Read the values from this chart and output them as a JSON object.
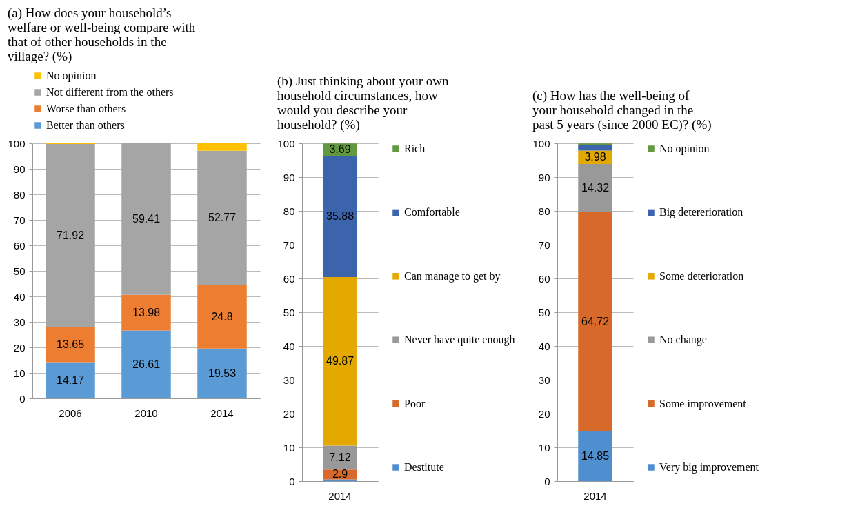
{
  "chart_data": [
    {
      "type": "bar",
      "stacked": true,
      "title": "(a) How does your household’s welfare or well-being compare with that of other households in the village? (%)",
      "categories": [
        "2006",
        "2010",
        "2014"
      ],
      "ylim": [
        0,
        100
      ],
      "yticks": [
        0,
        10,
        20,
        30,
        40,
        50,
        60,
        70,
        80,
        90,
        100
      ],
      "grid": "y",
      "legend": "top left",
      "series": [
        {
          "name": "Better than others",
          "color": "#5b9bd5",
          "values": [
            14.17,
            26.61,
            19.53
          ],
          "value_labels": [
            "14.17",
            "26.61",
            "19.53"
          ]
        },
        {
          "name": "Worse than others",
          "color": "#ed7d31",
          "values": [
            13.65,
            13.98,
            24.8
          ],
          "value_labels": [
            "13.65",
            "13.98",
            "24.8"
          ]
        },
        {
          "name": "Not different from the others",
          "color": "#a5a5a5",
          "values": [
            71.92,
            59.41,
            52.77
          ],
          "value_labels": [
            "71.92",
            "59.41",
            "52.77"
          ]
        },
        {
          "name": "No opinion",
          "color": "#ffc000",
          "values": [
            0.3,
            0,
            2.9
          ]
        }
      ]
    },
    {
      "type": "bar",
      "stacked": true,
      "title": "(b) Just thinking about your own household circumstances, how would you describe your household? (%)",
      "categories": [
        "2014"
      ],
      "ylim": [
        0,
        100
      ],
      "yticks": [
        0,
        10,
        20,
        30,
        40,
        50,
        60,
        70,
        80,
        90,
        100
      ],
      "grid": "y",
      "legend": "right",
      "series": [
        {
          "name": "Destitute",
          "color": "#4f8fcf",
          "values": [
            0.5
          ]
        },
        {
          "name": "Poor",
          "color": "#d7692a",
          "values": [
            2.9
          ],
          "value_labels": [
            "2.9"
          ]
        },
        {
          "name": "Never have quite enough",
          "color": "#999999",
          "values": [
            7.12
          ],
          "value_labels": [
            "7.12"
          ]
        },
        {
          "name": "Can manage to get by",
          "color": "#e3a900",
          "values": [
            49.87
          ],
          "value_labels": [
            "49.87"
          ]
        },
        {
          "name": "Comfortable",
          "color": "#3b64ad",
          "values": [
            35.88
          ],
          "value_labels": [
            "35.88"
          ]
        },
        {
          "name": "Rich",
          "color": "#62993e",
          "values": [
            3.69
          ],
          "value_labels": [
            "3.69"
          ]
        }
      ]
    },
    {
      "type": "bar",
      "stacked": true,
      "title": "(c) How has the well-being of your household changed in the past 5 years (since 2000 EC)? (%)",
      "categories": [
        "2014"
      ],
      "ylim": [
        0,
        100
      ],
      "yticks": [
        0,
        10,
        20,
        30,
        40,
        50,
        60,
        70,
        80,
        90,
        100
      ],
      "grid": "y",
      "legend": "right",
      "series": [
        {
          "name": "Very big improvement",
          "color": "#4f8fcf",
          "values": [
            14.85
          ],
          "value_labels": [
            "14.85"
          ]
        },
        {
          "name": "Some improvement",
          "color": "#d7692a",
          "values": [
            64.72
          ],
          "value_labels": [
            "64.72"
          ]
        },
        {
          "name": "No change",
          "color": "#999999",
          "values": [
            14.32
          ],
          "value_labels": [
            "14.32"
          ]
        },
        {
          "name": "Some deterioration",
          "color": "#e3a900",
          "values": [
            3.98
          ],
          "value_labels": [
            "3.98"
          ]
        },
        {
          "name": "Big detererioration",
          "color": "#3b64ad",
          "values": [
            1.7
          ]
        },
        {
          "name": "No opinion",
          "color": "#62993e",
          "values": [
            0.4
          ]
        }
      ]
    }
  ]
}
